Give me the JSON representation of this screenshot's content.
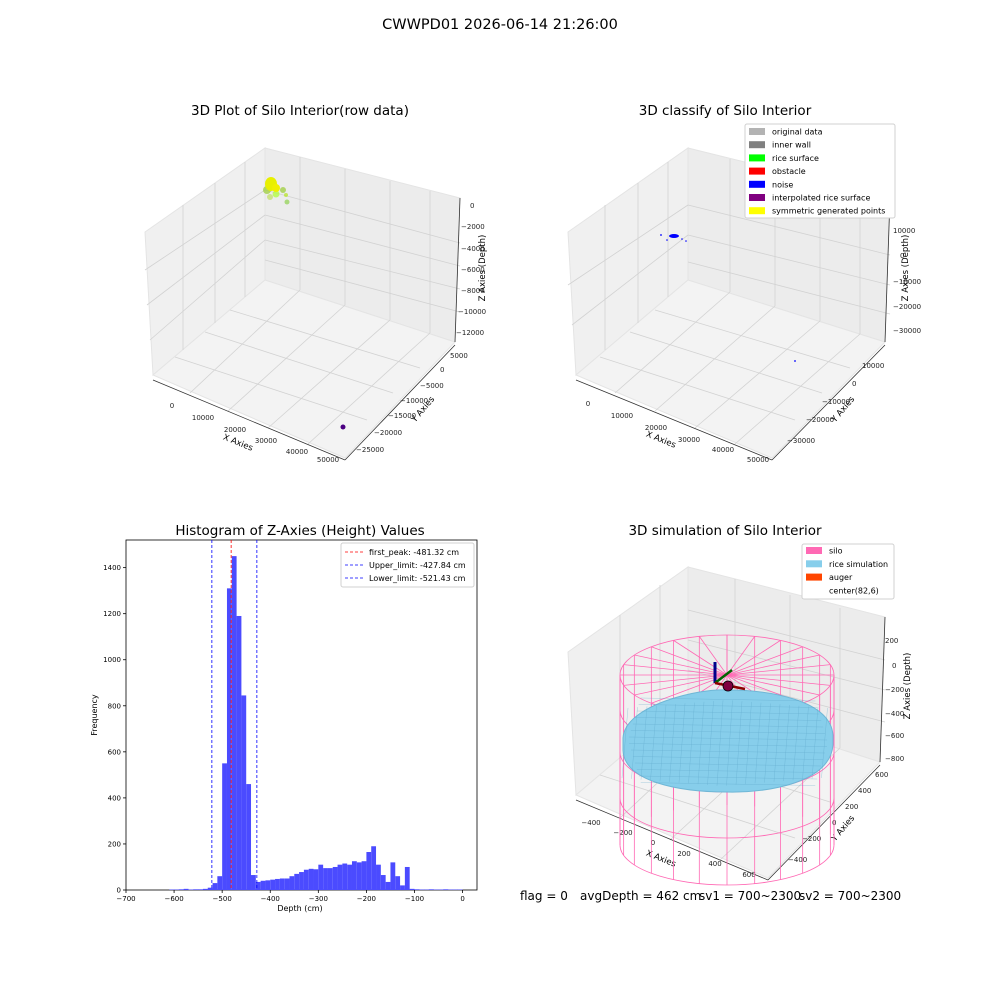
{
  "figure": {
    "suptitle": "CWWPD01 2026-06-14 21:26:00"
  },
  "panels": {
    "raw": {
      "title": "3D Plot of Silo Interior(row data)",
      "xlabel": "X Axies",
      "ylabel": "Y Axies",
      "zlabel": "Z Axies (Depth)",
      "xticks": [
        "0",
        "10000",
        "20000",
        "30000",
        "40000",
        "50000"
      ],
      "yticks": [
        "5000",
        "0",
        "−5000",
        "−10000",
        "−15000",
        "−20000",
        "−25000"
      ],
      "zticks": [
        "0",
        "−2000",
        "−4000",
        "−6000",
        "−8000",
        "−10000",
        "−12000"
      ]
    },
    "classify": {
      "title": "3D classify of Silo Interior",
      "xlabel": "X Axies",
      "ylabel": "Y Axies",
      "zlabel": "Z Axies (Depth)",
      "xticks": [
        "0",
        "10000",
        "20000",
        "30000",
        "40000",
        "50000"
      ],
      "yticks": [
        "10000",
        "0",
        "−10000",
        "−20000",
        "−30000"
      ],
      "zticks": [
        "10000",
        "0",
        "−10000",
        "−20000",
        "−30000"
      ],
      "legend": [
        {
          "label": "original data",
          "color": "#b3b3b3"
        },
        {
          "label": "inner wall",
          "color": "#808080"
        },
        {
          "label": "rice surface",
          "color": "#00ff00"
        },
        {
          "label": "obstacle",
          "color": "#ff0000"
        },
        {
          "label": "noise",
          "color": "#0000ff"
        },
        {
          "label": "interpolated rice surface",
          "color": "#800080"
        },
        {
          "label": "symmetric generated points",
          "color": "#ffff00"
        }
      ]
    },
    "simulation": {
      "title": "3D simulation of Silo Interior",
      "xlabel": "X Axies",
      "ylabel": "Y Axies",
      "zlabel": "Z Axies (Depth)",
      "xticks": [
        "−400",
        "−200",
        "0",
        "200",
        "400",
        "600"
      ],
      "yticks": [
        "600",
        "400",
        "200",
        "0",
        "−200",
        "−400"
      ],
      "zticks": [
        "200",
        "0",
        "−200",
        "−400",
        "−600",
        "−800"
      ],
      "legend": [
        {
          "label": "silo",
          "color": "#ff69b4"
        },
        {
          "label": "rice simulation",
          "color": "#87ceeb"
        },
        {
          "label": "auger",
          "color": "#ff4500"
        },
        {
          "label": "center(82,6)",
          "color": "#ffffff"
        }
      ]
    }
  },
  "footer": {
    "flag": "flag = 0",
    "avg": "avgDepth = 462 cm",
    "sv1": "sv1 = 700~2300",
    "sv2": "sv2 = 700~2300"
  },
  "chart_data": [
    {
      "type": "scatter",
      "title": "3D Plot of Silo Interior(row data)",
      "xlabel": "X Axies",
      "ylabel": "Y Axies",
      "zlabel": "Z Axies (Depth)",
      "xlim": [
        -5000,
        55000
      ],
      "ylim": [
        -27000,
        7000
      ],
      "zlim": [
        -13000,
        500
      ],
      "points": [
        {
          "x": 0,
          "y": 0,
          "z": 0,
          "color": "#ffff00"
        },
        {
          "x": 50000,
          "y": -25000,
          "z": -12000,
          "color": "#4b0082"
        }
      ]
    },
    {
      "type": "scatter",
      "title": "3D classify of Silo Interior",
      "xlabel": "X Axies",
      "ylabel": "Y Axies",
      "zlabel": "Z Axies (Depth)",
      "xlim": [
        -5000,
        55000
      ],
      "ylim": [
        -38000,
        14000
      ],
      "zlim": [
        -34000,
        16000
      ],
      "points": [
        {
          "x": 0,
          "y": 0,
          "z": 0,
          "color": "#0000ff"
        },
        {
          "x": 50000,
          "y": -30000,
          "z": -30000,
          "color": "#0000ff"
        }
      ]
    },
    {
      "type": "bar",
      "title": "Histogram of Z-Axies (Height) Values",
      "xlabel": "Depth (cm)",
      "ylabel": "Frequency",
      "xlim": [
        -700,
        30
      ],
      "ylim": [
        0,
        1520
      ],
      "bin_width": 10,
      "bin_starts": [
        -610,
        -600,
        -590,
        -580,
        -570,
        -560,
        -550,
        -540,
        -530,
        -520,
        -510,
        -500,
        -490,
        -480,
        -470,
        -460,
        -450,
        -440,
        -430,
        -420,
        -410,
        -400,
        -390,
        -380,
        -370,
        -360,
        -350,
        -340,
        -330,
        -320,
        -310,
        -300,
        -290,
        -280,
        -270,
        -260,
        -250,
        -240,
        -230,
        -220,
        -210,
        -200,
        -190,
        -180,
        -170,
        -160,
        -150,
        -140,
        -130,
        -120,
        -110,
        -100,
        -90,
        -80,
        -70,
        -60,
        -50,
        -40,
        -30,
        -20,
        -10
      ],
      "values": [
        2,
        2,
        3,
        5,
        2,
        3,
        3,
        5,
        10,
        30,
        60,
        550,
        1310,
        1450,
        1190,
        845,
        460,
        65,
        35,
        40,
        42,
        45,
        48,
        50,
        50,
        60,
        70,
        78,
        88,
        92,
        90,
        110,
        95,
        95,
        100,
        110,
        115,
        110,
        125,
        120,
        125,
        165,
        190,
        110,
        65,
        35,
        120,
        60,
        20,
        100,
        5,
        3,
        2,
        2,
        3,
        2,
        2,
        3,
        2,
        2,
        2
      ],
      "xticks": [
        "−700",
        "−600",
        "−500",
        "−400",
        "−300",
        "−200",
        "−100",
        "0"
      ],
      "yticks": [
        "0",
        "200",
        "400",
        "600",
        "800",
        "1000",
        "1200",
        "1400"
      ],
      "vlines": [
        {
          "label": "first_peak: -481.32 cm",
          "x": -481.32,
          "color": "#ff0000"
        },
        {
          "label": "Upper_limit: -427.84 cm",
          "x": -427.84,
          "color": "#0000ff"
        },
        {
          "label": "Lower_limit: -521.43 cm",
          "x": -521.43,
          "color": "#0000ff"
        }
      ],
      "bar_color": "#4b4bff"
    },
    {
      "type": "scatter",
      "title": "3D simulation of Silo Interior",
      "xlabel": "X Axies",
      "ylabel": "Y Axies",
      "zlabel": "Z Axies (Depth)",
      "xlim": [
        -500,
        650
      ],
      "ylim": [
        -500,
        650
      ],
      "zlim": [
        -850,
        300
      ],
      "center": [
        82,
        6
      ]
    }
  ]
}
